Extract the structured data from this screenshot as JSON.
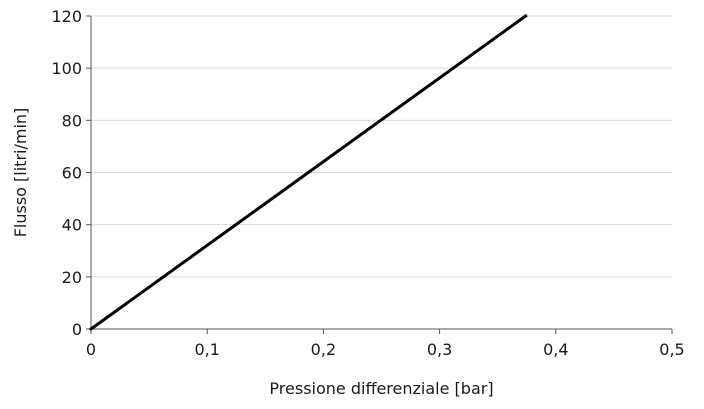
{
  "chart_data": {
    "type": "line",
    "title": "",
    "xlabel": "Pressione differenziale [bar]",
    "ylabel": "Flusso [litri/min]",
    "xlim": [
      0,
      0.5
    ],
    "ylim": [
      0,
      120
    ],
    "x_ticks": [
      0,
      0.1,
      0.2,
      0.3,
      0.4,
      0.5
    ],
    "x_tick_labels": [
      "0",
      "0,1",
      "0,2",
      "0,3",
      "0,4",
      "0,5"
    ],
    "y_ticks": [
      0,
      20,
      40,
      60,
      80,
      100,
      120
    ],
    "y_tick_labels": [
      "0",
      "20",
      "40",
      "60",
      "80",
      "100",
      "120"
    ],
    "grid": "horizontal",
    "legend": "none",
    "series": [
      {
        "x": [
          0,
          0.374
        ],
        "y": [
          0,
          120
        ],
        "color": "#000000"
      }
    ]
  }
}
